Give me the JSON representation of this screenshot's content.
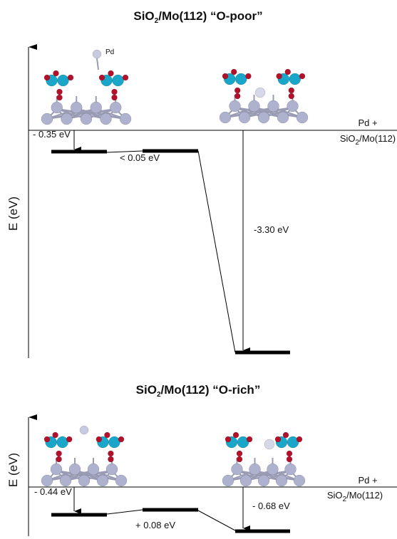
{
  "top": {
    "title": {
      "pre": "SiO",
      "sub": "2",
      "post": "/Mo(112) “O-poor”"
    },
    "adatom_label": "Pd",
    "axis_label": "E (eV)",
    "reference": {
      "line1": "Pd +",
      "line2": {
        "pre": "SiO",
        "sub": "2",
        "post": "/Mo(112)"
      }
    },
    "energies": [
      "- 0.35 eV",
      "< 0.05 eV",
      "-3.30 eV"
    ]
  },
  "bottom": {
    "title": {
      "pre": "SiO",
      "sub": "2",
      "post": "/Mo(112) “O-rich”"
    },
    "axis_label": "E (eV)",
    "reference": {
      "line1": "Pd +",
      "line2": {
        "pre": "SiO",
        "sub": "2",
        "post": "/Mo(112)"
      }
    },
    "energies": [
      "- 0.44 eV",
      "+ 0.08 eV",
      "- 0.68 eV"
    ]
  }
}
